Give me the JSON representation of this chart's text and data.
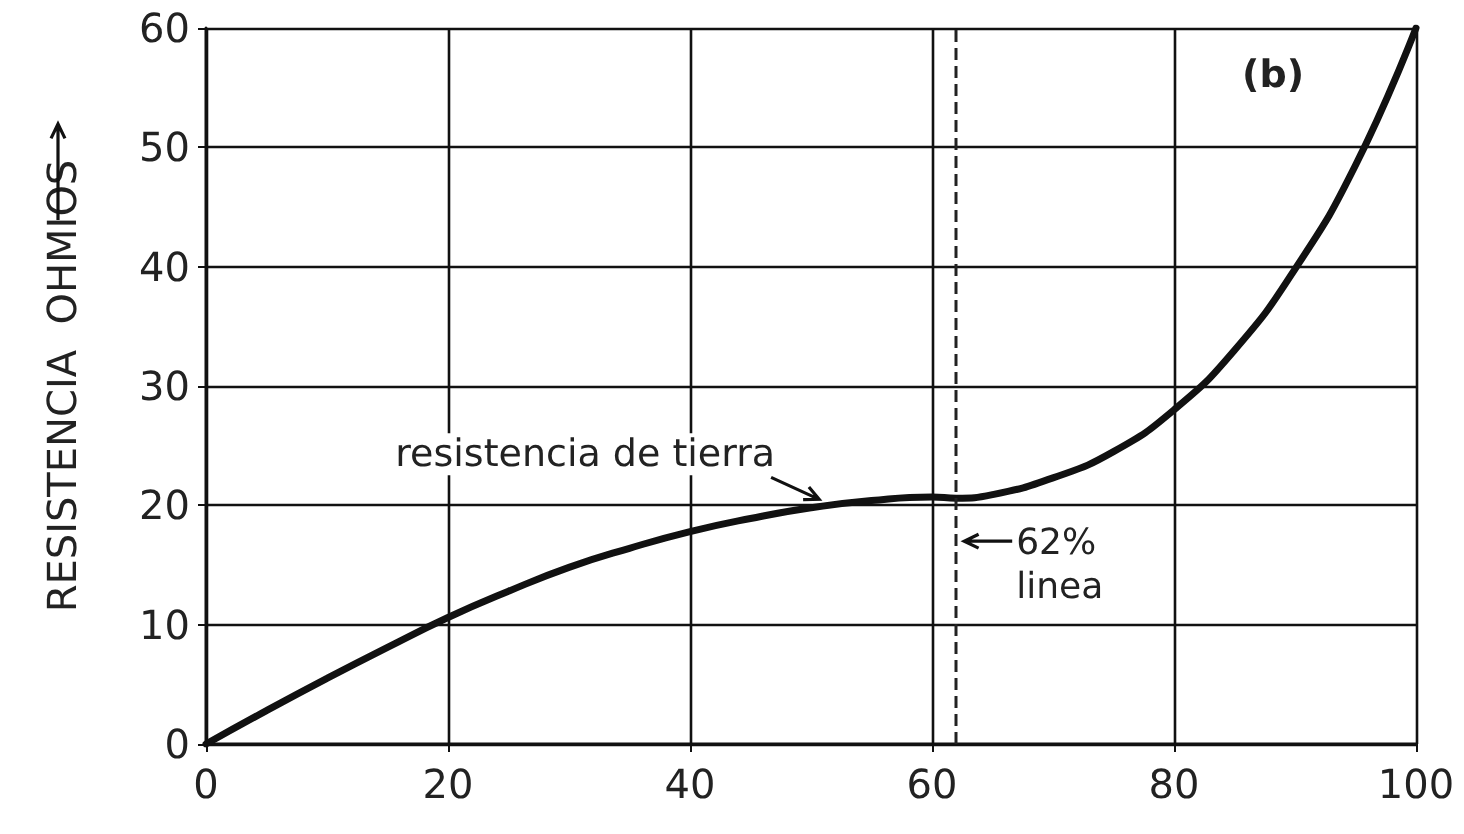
{
  "chart_data": {
    "type": "line",
    "ylabel": "RESISTENCIA  OHMIOS",
    "series": [
      {
        "color": "#111111",
        "x": [
          0,
          5,
          10,
          15,
          20,
          25,
          30,
          35,
          40,
          45,
          50,
          55,
          60,
          62,
          65,
          70,
          75,
          80,
          85,
          90,
          95,
          100
        ],
        "values": [
          0,
          2.8,
          5.5,
          8.1,
          10.6,
          12.8,
          14.8,
          16.4,
          17.8,
          18.9,
          19.8,
          20.4,
          20.7,
          20.6,
          20.9,
          22.3,
          24.5,
          28,
          33,
          39.8,
          48.5,
          60
        ]
      }
    ],
    "xlim": [
      0,
      100
    ],
    "xticks": [
      0,
      20,
      40,
      60,
      80,
      100
    ],
    "ylim": [
      0,
      60
    ],
    "yticks": [
      0,
      10,
      20,
      30,
      40,
      50,
      60
    ],
    "grid": true,
    "marker": "none",
    "line_style": "solid",
    "ref_lines": [
      {
        "axis": "x",
        "value": 62,
        "label": "62%\nlinea",
        "line_style": "dashed",
        "color": "#222222"
      }
    ],
    "annotations": [
      {
        "text": "resistencia de tierra",
        "x": 51,
        "y": 20
      },
      "(b)"
    ]
  }
}
